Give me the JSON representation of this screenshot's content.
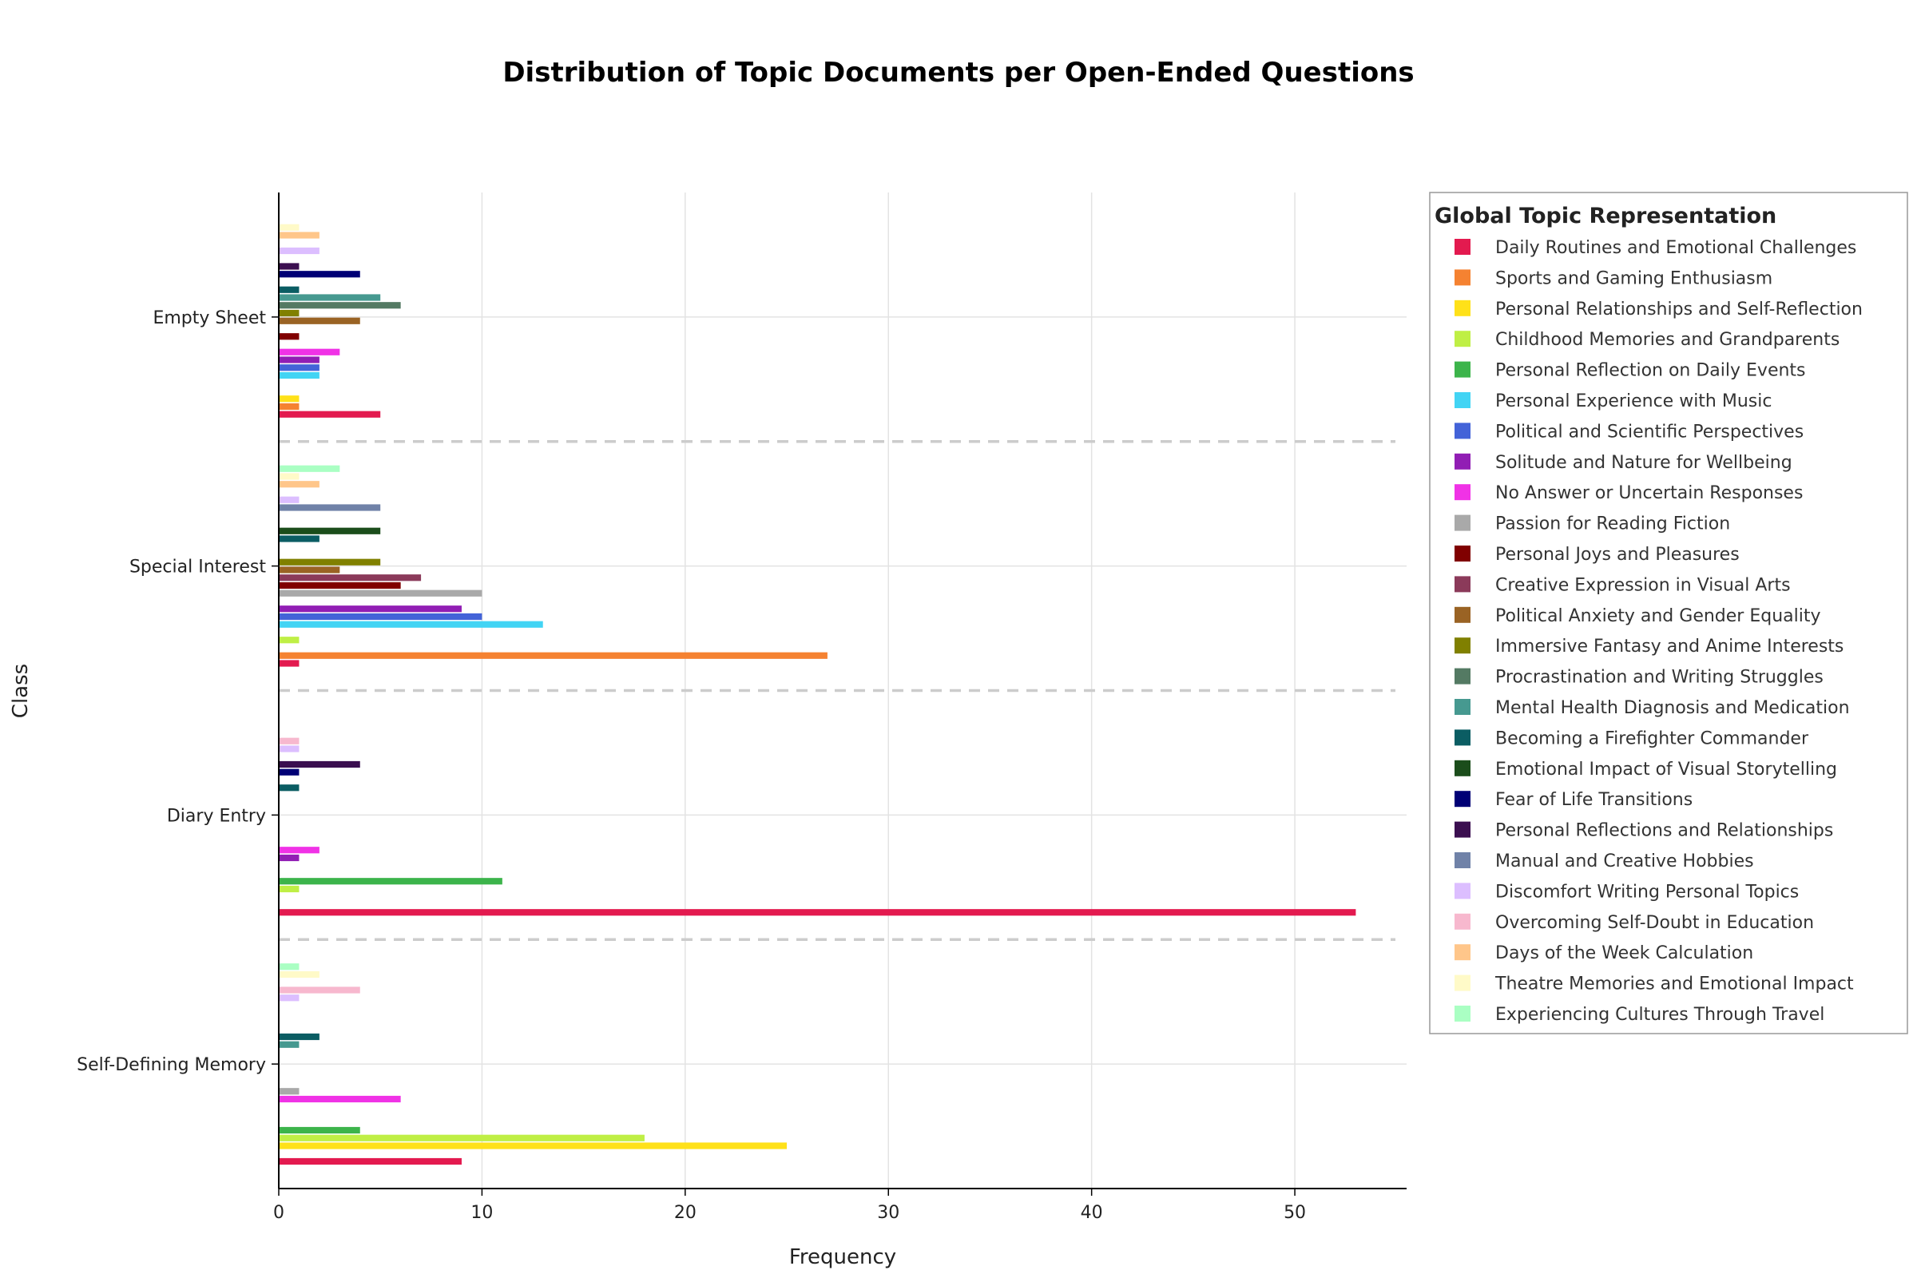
{
  "chart_data": {
    "type": "bar",
    "orientation": "horizontal",
    "grouped": true,
    "title": "Distribution of Topic Documents per Open-Ended Questions",
    "xlabel": "Frequency",
    "ylabel": "Class",
    "xlim": [
      0,
      55.5
    ],
    "xticks": [
      "0",
      "10",
      "20",
      "30",
      "40",
      "50"
    ],
    "grid": true,
    "group_separators": "dashed",
    "legend_title": "Global Topic Representation",
    "legend_position": "right",
    "categories": [
      "Self-Defining Memory",
      "Diary Entry",
      "Special Interest",
      "Empty Sheet"
    ],
    "series": [
      {
        "name": "Daily Routines and Emotional Challenges",
        "color": "#e31a4f",
        "values": [
          9,
          53,
          1,
          5
        ]
      },
      {
        "name": "Sports and Gaming Enthusiasm",
        "color": "#f58231",
        "values": [
          0,
          0,
          27,
          1
        ]
      },
      {
        "name": "Personal Relationships and Self-Reflection",
        "color": "#ffe119",
        "values": [
          25,
          0,
          0,
          1
        ]
      },
      {
        "name": "Childhood Memories and Grandparents",
        "color": "#bfef45",
        "values": [
          18,
          1,
          1,
          0
        ]
      },
      {
        "name": "Personal Reflection on Daily Events",
        "color": "#3cb44b",
        "values": [
          4,
          11,
          0,
          0
        ]
      },
      {
        "name": "Personal Experience with Music",
        "color": "#42d4f4",
        "values": [
          0,
          0,
          13,
          2
        ]
      },
      {
        "name": "Political and Scientific Perspectives",
        "color": "#4363d8",
        "values": [
          0,
          0,
          10,
          2
        ]
      },
      {
        "name": "Solitude and Nature for Wellbeing",
        "color": "#911eb4",
        "values": [
          0,
          1,
          9,
          2
        ]
      },
      {
        "name": "No Answer or Uncertain Responses",
        "color": "#f032e6",
        "values": [
          6,
          2,
          0,
          3
        ]
      },
      {
        "name": "Passion for Reading Fiction",
        "color": "#a9a9a9",
        "values": [
          1,
          0,
          10,
          0
        ]
      },
      {
        "name": "Personal Joys and Pleasures",
        "color": "#800000",
        "values": [
          0,
          0,
          6,
          1
        ]
      },
      {
        "name": "Creative Expression in Visual Arts",
        "color": "#8b3a5a",
        "values": [
          0,
          0,
          7,
          0
        ]
      },
      {
        "name": "Political Anxiety and Gender Equality",
        "color": "#9a6324",
        "values": [
          0,
          0,
          3,
          4
        ]
      },
      {
        "name": "Immersive Fantasy and Anime Interests",
        "color": "#808000",
        "values": [
          0,
          0,
          5,
          1
        ]
      },
      {
        "name": "Procrastination and Writing Struggles",
        "color": "#547a63",
        "values": [
          0,
          0,
          0,
          6
        ]
      },
      {
        "name": "Mental Health Diagnosis and Medication",
        "color": "#469990",
        "values": [
          1,
          0,
          0,
          5
        ]
      },
      {
        "name": "Becoming a Firefighter Commander",
        "color": "#0b5d63",
        "values": [
          2,
          1,
          2,
          1
        ]
      },
      {
        "name": "Emotional Impact of Visual Storytelling",
        "color": "#1b4d1b",
        "values": [
          0,
          0,
          5,
          0
        ]
      },
      {
        "name": "Fear of Life Transitions",
        "color": "#000075",
        "values": [
          0,
          1,
          0,
          4
        ]
      },
      {
        "name": "Personal Reflections and Relationships",
        "color": "#3b0f50",
        "values": [
          0,
          4,
          0,
          1
        ]
      },
      {
        "name": "Manual and Creative Hobbies",
        "color": "#7082a8",
        "values": [
          0,
          0,
          5,
          0
        ]
      },
      {
        "name": "Discomfort Writing Personal Topics",
        "color": "#dcbeff",
        "values": [
          1,
          1,
          1,
          2
        ]
      },
      {
        "name": "Overcoming Self-Doubt in Education",
        "color": "#f7b8ce",
        "values": [
          4,
          1,
          0,
          0
        ]
      },
      {
        "name": "Days of the Week Calculation",
        "color": "#ffc68a",
        "values": [
          0,
          0,
          2,
          2
        ]
      },
      {
        "name": "Theatre Memories and Emotional Impact",
        "color": "#fffac8",
        "values": [
          2,
          0,
          1,
          1
        ]
      },
      {
        "name": "Experiencing Cultures Through Travel",
        "color": "#aaffc3",
        "values": [
          1,
          0,
          3,
          0
        ]
      }
    ]
  }
}
